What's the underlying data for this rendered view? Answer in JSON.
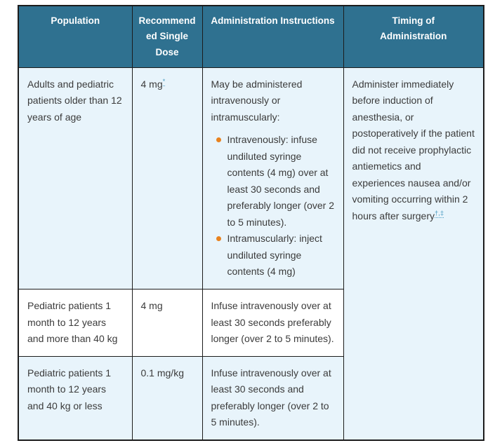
{
  "table": {
    "headers": {
      "population": "Population",
      "dose": "Recommend\ned Single\nDose",
      "instructions": "Administration Instructions",
      "timing": "Timing of\nAdministration"
    },
    "rows": [
      {
        "population": "Adults and pediatric patients older than 12 years of age",
        "dose": "4 mg",
        "dose_footnote": "*",
        "instructions_intro": "May be administered intravenously or intramuscularly:",
        "bullets": [
          "Intravenously: infuse undiluted syringe contents (4 mg) over at least 30 seconds and preferably longer (over 2 to 5 minutes).",
          "Intramuscularly: inject undiluted syringe contents (4 mg)"
        ],
        "timing": "Administer immediately before induction of anesthesia, or postoperatively if the patient did not receive prophylactic antiemetics and experiences nausea and/or vomiting occurring within 2 hours after surgery",
        "timing_footnote": "†,‡"
      },
      {
        "population": "Pediatric patients 1 month to 12 years and more than 40 kg",
        "dose": "4 mg",
        "instructions": "Infuse intravenously over at least 30 seconds preferably longer (over 2 to 5 minutes)."
      },
      {
        "population": "Pediatric patients 1 month to 12 years and 40 kg or less",
        "dose": "0.1 mg/kg",
        "instructions": "Infuse intravenously over at least 30 seconds and preferably longer (over 2 to 5 minutes)."
      }
    ],
    "colors": {
      "header_bg": "#2f7190",
      "row_alt_bg": "#e8f4fb",
      "bullet": "#e8821e",
      "footnote_link": "#4b9cc2",
      "border": "#1c1c1c",
      "text": "#3b3b3b"
    }
  }
}
